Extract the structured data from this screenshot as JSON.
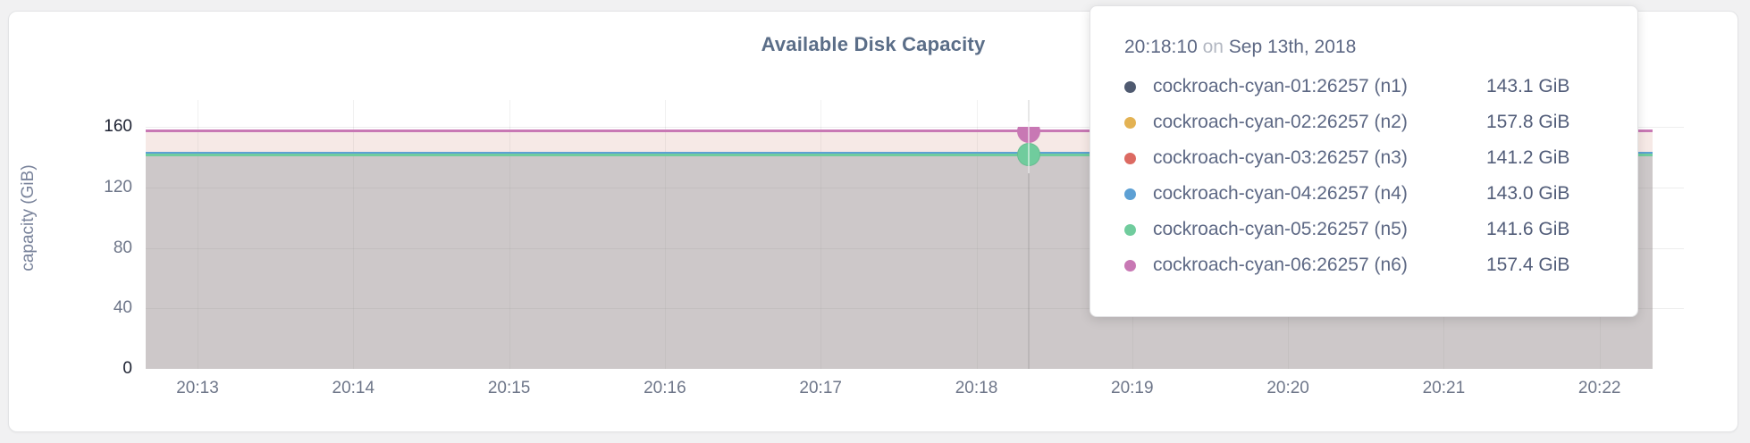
{
  "colors": {
    "page_bg": "#f1f1f2",
    "panel_bg": "#ffffff",
    "panel_border": "#e3e4e6",
    "title_text": "#5b6e88",
    "axis_text": "#6e7689",
    "axis_text_minmax": "#1b2030",
    "tooltip_text": "#5d6884",
    "tooltip_muted": "#b3b8c2",
    "upper_band_fill": "#f8eded",
    "lower_band_fill": "#d3d0c8"
  },
  "chart_data": {
    "type": "area",
    "title": "Available Disk Capacity",
    "xlabel": "",
    "ylabel": "capacity (GiB)",
    "ylim": [
      0,
      160
    ],
    "y_ticks": [
      0,
      40,
      80,
      120,
      160
    ],
    "x_ticks": [
      "20:13",
      "20:14",
      "20:15",
      "20:16",
      "20:17",
      "20:18",
      "20:19",
      "20:20",
      "20:21",
      "20:22"
    ],
    "grid": true,
    "legend_position": "none (values shown in hover tooltip)",
    "series": [
      {
        "name": "cockroach-cyan-01:26257 (n1)",
        "color": "#4f5a70",
        "value_gib": 143.1,
        "shape": "flat line across full time window"
      },
      {
        "name": "cockroach-cyan-02:26257 (n2)",
        "color": "#e3b253",
        "value_gib": 157.8,
        "shape": "flat line across full time window"
      },
      {
        "name": "cockroach-cyan-03:26257 (n3)",
        "color": "#dc6a62",
        "value_gib": 141.2,
        "shape": "flat line across full time window"
      },
      {
        "name": "cockroach-cyan-04:26257 (n4)",
        "color": "#5da0d4",
        "value_gib": 143.0,
        "shape": "flat line across full time window"
      },
      {
        "name": "cockroach-cyan-05:26257 (n5)",
        "color": "#70cc9d",
        "value_gib": 141.6,
        "shape": "flat line across full time window"
      },
      {
        "name": "cockroach-cyan-06:26257 (n6)",
        "color": "#c878b4",
        "value_gib": 157.4,
        "shape": "flat line across full time window"
      }
    ],
    "hover": {
      "time": "20:18:10",
      "visible_markers": [
        "cockroach-cyan-06:26257 (n6)",
        "cockroach-cyan-05:26257 (n5)"
      ]
    }
  },
  "axes": {
    "y_tick_labels": [
      "0",
      "40",
      "80",
      "120",
      "160"
    ],
    "x_tick_labels": [
      "20:13",
      "20:14",
      "20:15",
      "20:16",
      "20:17",
      "20:18",
      "20:19",
      "20:20",
      "20:21",
      "20:22"
    ]
  },
  "tooltip": {
    "time": "20:18:10",
    "conjunction": "on",
    "date": "Sep 13th, 2018",
    "rows": [
      {
        "name": "cockroach-cyan-01:26257 (n1)",
        "value": "143.1 GiB",
        "color": "#4f5a70"
      },
      {
        "name": "cockroach-cyan-02:26257 (n2)",
        "value": "157.8 GiB",
        "color": "#e3b253"
      },
      {
        "name": "cockroach-cyan-03:26257 (n3)",
        "value": "141.2 GiB",
        "color": "#dc6a62"
      },
      {
        "name": "cockroach-cyan-04:26257 (n4)",
        "value": "143.0 GiB",
        "color": "#5da0d4"
      },
      {
        "name": "cockroach-cyan-05:26257 (n5)",
        "value": "141.6 GiB",
        "color": "#70cc9d"
      },
      {
        "name": "cockroach-cyan-06:26257 (n6)",
        "value": "157.4 GiB",
        "color": "#c878b4"
      }
    ]
  }
}
